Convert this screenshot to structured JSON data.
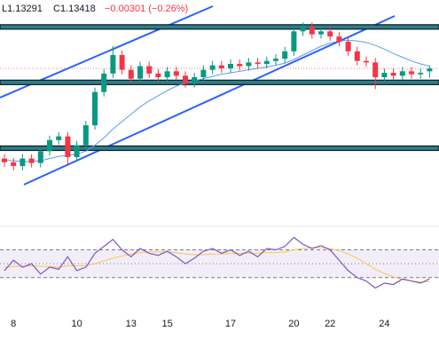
{
  "chart_data": {
    "type": "candlestick",
    "header": {
      "low": "L1.13291",
      "close": "C1.13418",
      "change": "−0.00301 (−0.26%)"
    },
    "categories": [
      null,
      "8",
      null,
      null,
      null,
      null,
      null,
      null,
      "10",
      null,
      null,
      null,
      null,
      null,
      "13",
      null,
      null,
      null,
      "15",
      null,
      null,
      null,
      null,
      null,
      null,
      "17",
      null,
      null,
      null,
      null,
      null,
      null,
      "20",
      null,
      null,
      null,
      "22",
      null,
      null,
      null,
      null,
      null,
      "24",
      null,
      null,
      null,
      null,
      null
    ],
    "open": [
      1.122,
      1.1215,
      1.121,
      1.122,
      1.1214,
      1.123,
      1.1245,
      1.125,
      1.1222,
      1.1238,
      1.1265,
      1.131,
      1.1335,
      1.136,
      1.134,
      1.1328,
      1.1345,
      1.1335,
      1.133,
      1.1338,
      1.1332,
      1.1322,
      1.133,
      1.134,
      1.1346,
      1.1342,
      1.1348,
      1.1345,
      1.135,
      1.1348,
      1.1352,
      1.1355,
      1.1365,
      1.1392,
      1.1398,
      1.1388,
      1.1392,
      1.1385,
      1.1378,
      1.1365,
      1.1352,
      1.135,
      1.133,
      1.1336,
      1.1332,
      1.1338,
      1.1334,
      1.1338
    ],
    "high": [
      1.1226,
      1.1221,
      1.1226,
      1.1226,
      1.1236,
      1.1251,
      1.1256,
      1.1256,
      1.1244,
      1.1271,
      1.1316,
      1.1341,
      1.1372,
      1.1366,
      1.1346,
      1.1351,
      1.1351,
      1.1341,
      1.1344,
      1.1344,
      1.1338,
      1.1336,
      1.1346,
      1.1352,
      1.1352,
      1.1354,
      1.1354,
      1.1356,
      1.1356,
      1.1358,
      1.1361,
      1.1371,
      1.1398,
      1.1404,
      1.1404,
      1.1398,
      1.1398,
      1.1391,
      1.1384,
      1.1371,
      1.1358,
      1.1356,
      1.1342,
      1.1342,
      1.1344,
      1.1344,
      1.1342,
      1.1346
    ],
    "low": [
      1.1209,
      1.1204,
      1.1204,
      1.1208,
      1.1208,
      1.1224,
      1.1239,
      1.121,
      1.1216,
      1.1232,
      1.1259,
      1.1304,
      1.1329,
      1.1334,
      1.1322,
      1.1322,
      1.1329,
      1.1324,
      1.1324,
      1.1326,
      1.1316,
      1.1316,
      1.1324,
      1.1334,
      1.1336,
      1.1336,
      1.1339,
      1.1339,
      1.1342,
      1.1342,
      1.1346,
      1.1349,
      1.1359,
      1.1386,
      1.1382,
      1.1382,
      1.1379,
      1.1372,
      1.1359,
      1.1346,
      1.1344,
      1.1314,
      1.1324,
      1.1326,
      1.1326,
      1.1328,
      1.1328,
      1.13291
    ],
    "close": [
      1.1215,
      1.121,
      1.122,
      1.1214,
      1.123,
      1.1245,
      1.125,
      1.1222,
      1.1238,
      1.1265,
      1.131,
      1.1335,
      1.136,
      1.134,
      1.1328,
      1.1345,
      1.1335,
      1.133,
      1.1338,
      1.1332,
      1.1322,
      1.133,
      1.134,
      1.1346,
      1.1342,
      1.1348,
      1.1345,
      1.135,
      1.1348,
      1.1352,
      1.1355,
      1.1365,
      1.1392,
      1.1398,
      1.1388,
      1.1392,
      1.1385,
      1.1378,
      1.1365,
      1.1352,
      1.135,
      1.133,
      1.1336,
      1.1332,
      1.1338,
      1.1334,
      1.1336,
      1.13418
    ],
    "up_color": "#089981",
    "down_color": "#f23645",
    "ma": {
      "color": "#5b9cf6",
      "values": [
        1.1218,
        1.1217,
        1.1216,
        1.1216,
        1.1217,
        1.122,
        1.1223,
        1.1224,
        1.1226,
        1.123,
        1.1238,
        1.1248,
        1.126,
        1.127,
        1.128,
        1.129,
        1.1298,
        1.1305,
        1.1312,
        1.1318,
        1.1322,
        1.1325,
        1.1328,
        1.1331,
        1.1334,
        1.1336,
        1.1338,
        1.134,
        1.1342,
        1.1344,
        1.1346,
        1.1349,
        1.1354,
        1.136,
        1.1366,
        1.1372,
        1.1376,
        1.1379,
        1.138,
        1.1379,
        1.1377,
        1.1373,
        1.1368,
        1.1362,
        1.1357,
        1.1352,
        1.1348,
        1.1345
      ]
    },
    "levels": [
      1.1398,
      1.1323,
      1.1234
    ],
    "ylim": [
      1.11404,
      1.14344
    ],
    "rsi": {
      "color": "#7e57c2",
      "ma_color": "#f7c948",
      "values": [
        40,
        55,
        45,
        50,
        35,
        45,
        42,
        60,
        40,
        45,
        65,
        75,
        85,
        70,
        60,
        72,
        65,
        62,
        68,
        60,
        50,
        58,
        68,
        72,
        65,
        70,
        62,
        68,
        60,
        72,
        70,
        75,
        88,
        78,
        72,
        76,
        70,
        55,
        40,
        30,
        25,
        15,
        22,
        20,
        28,
        25,
        22,
        28
      ],
      "ma": [
        45,
        46,
        46,
        47,
        46,
        46,
        45,
        47,
        47,
        47,
        50,
        54,
        58,
        61,
        64,
        66,
        67,
        67,
        67,
        66,
        64,
        63,
        63,
        64,
        64,
        65,
        65,
        65,
        65,
        66,
        66,
        67,
        70,
        72,
        73,
        73,
        72,
        69,
        64,
        58,
        50,
        42,
        36,
        31,
        27,
        25,
        24,
        24
      ],
      "levels": [
        70,
        50,
        30
      ],
      "ylim": [
        -10,
        95
      ]
    }
  }
}
